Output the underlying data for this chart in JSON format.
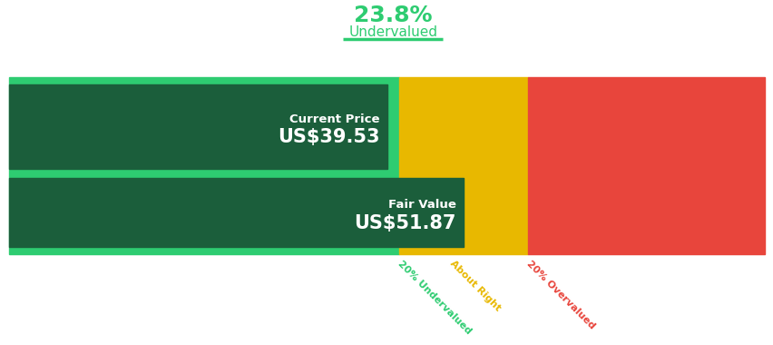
{
  "title_percent": "23.8%",
  "title_label": "Undervalued",
  "title_color": "#2ecc71",
  "current_price_label": "Current Price",
  "current_price_value": "US$39.53",
  "fair_value_label": "Fair Value",
  "fair_value_value": "US$51.87",
  "current_price": 39.53,
  "fair_value": 51.87,
  "uv_boundary": 41.496,
  "ov_boundary": 62.244,
  "price_min": -21.5,
  "price_max": 100.55,
  "color_bright_green": "#2ecc71",
  "color_dark_green": "#1b5e3b",
  "color_dark_label_bg": "#1e2d1e",
  "color_yellow": "#e8b800",
  "color_red": "#e8453c",
  "color_label_undervalued": "#2ecc71",
  "color_label_about_right": "#e8b800",
  "color_label_overvalued": "#e8453c",
  "label_undervalued": "20% Undervalued",
  "label_about_right": "About Right",
  "label_overvalued": "20% Overvalued",
  "bg_color": "#ffffff",
  "underline_color": "#2ecc71"
}
